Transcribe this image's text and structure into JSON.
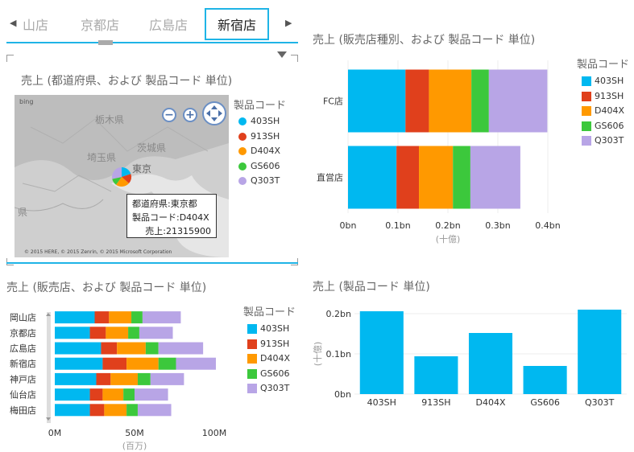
{
  "slicer": {
    "tabs": [
      "山店",
      "京都店",
      "広島店",
      "新宿店"
    ],
    "selected": "新宿店",
    "prev_arrow": "◀",
    "next_arrow": "▶"
  },
  "colors": {
    "403SH": "#00B8F0",
    "913SH": "#E0401C",
    "D404X": "#FF9900",
    "GS606": "#3CC83C",
    "Q303T": "#B8A5E6",
    "accent": "#1FB4E6"
  },
  "legend": {
    "title": "製品コード",
    "items": [
      "403SH",
      "913SH",
      "D404X",
      "GS606",
      "Q303T"
    ]
  },
  "map_visual": {
    "title": "売上 (都道府県、および 製品コード 単位)",
    "bing_label": "bing",
    "copyright": "© 2015 HERE, © 2015 Zenrin, © 2015 Microsoft Corporation",
    "map_labels": [
      "栃木県",
      "茨城県",
      "埼玉県",
      "東京",
      "県"
    ],
    "zoom_out": "−",
    "zoom_in": "+",
    "tooltip": {
      "line1": "都道府県:東京都",
      "line2": "製品コード:D404X",
      "line3": "売上:21315900"
    }
  },
  "chart_data": [
    {
      "type": "bar",
      "orientation": "horizontal",
      "stacked": true,
      "title": "売上 (販売店種別、および 製品コード 単位)",
      "categories": [
        "FC店",
        "直営店"
      ],
      "series": [
        {
          "name": "403SH",
          "values": [
            0.115,
            0.097
          ]
        },
        {
          "name": "913SH",
          "values": [
            0.047,
            0.045
          ]
        },
        {
          "name": "D404X",
          "values": [
            0.085,
            0.068
          ]
        },
        {
          "name": "GS606",
          "values": [
            0.035,
            0.035
          ]
        },
        {
          "name": "Q303T",
          "values": [
            0.117,
            0.1
          ]
        }
      ],
      "xticks": [
        "0bn",
        "0.1bn",
        "0.2bn",
        "0.3bn",
        "0.4bn"
      ],
      "xlim": [
        0,
        0.4
      ],
      "xunit": "(十億)"
    },
    {
      "type": "bar",
      "orientation": "horizontal",
      "stacked": true,
      "title": "売上 (販売店、および 製品コード 単位)",
      "categories": [
        "岡山店",
        "京都店",
        "広島店",
        "新宿店",
        "神戸店",
        "仙台店",
        "梅田店"
      ],
      "series": [
        {
          "name": "403SH",
          "values": [
            25,
            22,
            29,
            30,
            26,
            22,
            22
          ]
        },
        {
          "name": "913SH",
          "values": [
            9,
            10,
            10,
            15,
            9,
            8,
            9
          ]
        },
        {
          "name": "D404X",
          "values": [
            14,
            14,
            18,
            20,
            17,
            13,
            14
          ]
        },
        {
          "name": "GS606",
          "values": [
            7,
            7,
            8,
            11,
            8,
            7,
            7
          ]
        },
        {
          "name": "Q303T",
          "values": [
            24,
            21,
            28,
            25,
            21,
            21,
            21
          ]
        }
      ],
      "xticks": [
        "0M",
        "50M",
        "100M"
      ],
      "xlim": [
        0,
        100
      ],
      "xunit": "(百万)"
    },
    {
      "type": "bar",
      "title": "売上 (製品コード 単位)",
      "categories": [
        "403SH",
        "913SH",
        "D404X",
        "GS606",
        "Q303T"
      ],
      "values": [
        0.206,
        0.094,
        0.152,
        0.07,
        0.21
      ],
      "yticks": [
        "0bn",
        "0.1bn",
        "0.2bn"
      ],
      "ylim": [
        0,
        0.2
      ],
      "yunit": "(十億)"
    }
  ]
}
